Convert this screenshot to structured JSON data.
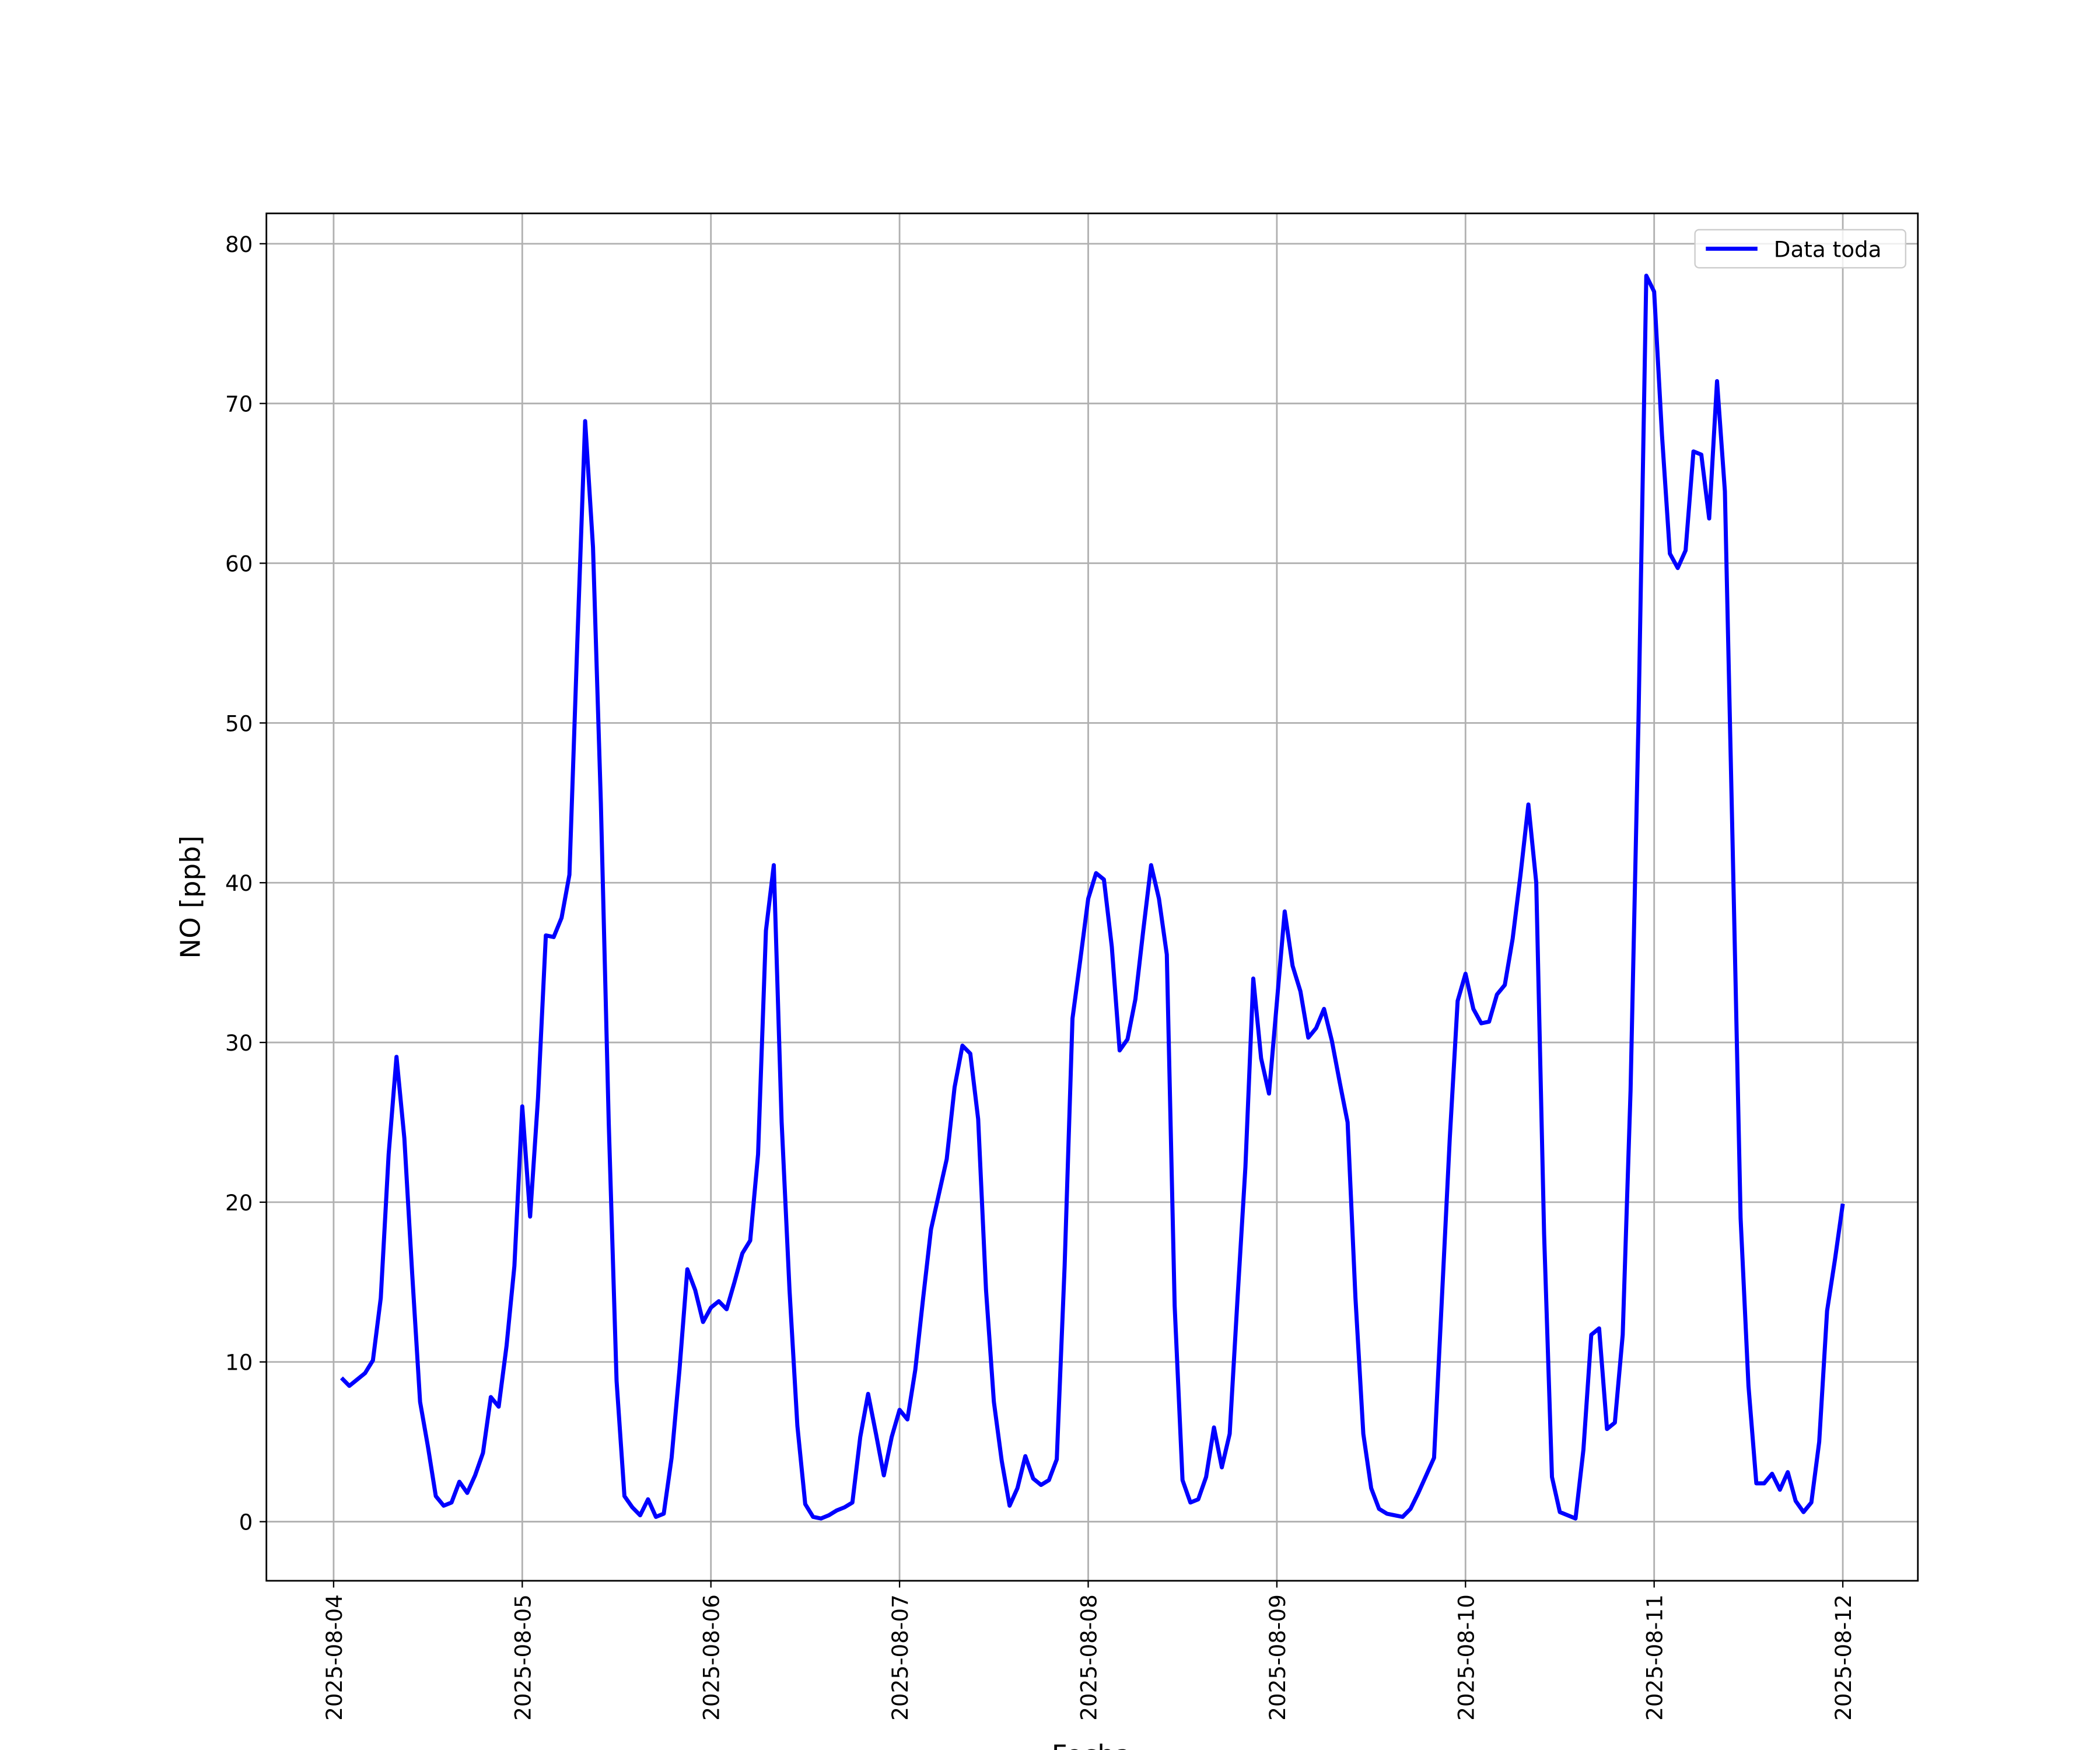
{
  "chart_data": {
    "type": "line",
    "x_label": "Fecha",
    "y_label": "NO [ppb]",
    "x": [
      "2025-08-04 01:00",
      "2025-08-04 02:00",
      "2025-08-04 03:00",
      "2025-08-04 04:00",
      "2025-08-04 05:00",
      "2025-08-04 06:00",
      "2025-08-04 07:00",
      "2025-08-04 08:00",
      "2025-08-04 09:00",
      "2025-08-04 10:00",
      "2025-08-04 11:00",
      "2025-08-04 12:00",
      "2025-08-04 13:00",
      "2025-08-04 14:00",
      "2025-08-04 15:00",
      "2025-08-04 16:00",
      "2025-08-04 17:00",
      "2025-08-04 18:00",
      "2025-08-04 19:00",
      "2025-08-04 20:00",
      "2025-08-04 21:00",
      "2025-08-04 22:00",
      "2025-08-04 23:00",
      "2025-08-05 00:00",
      "2025-08-05 01:00",
      "2025-08-05 02:00",
      "2025-08-05 03:00",
      "2025-08-05 04:00",
      "2025-08-05 05:00",
      "2025-08-05 06:00",
      "2025-08-05 07:00",
      "2025-08-05 08:00",
      "2025-08-05 09:00",
      "2025-08-05 10:00",
      "2025-08-05 11:00",
      "2025-08-05 12:00",
      "2025-08-05 13:00",
      "2025-08-05 14:00",
      "2025-08-05 15:00",
      "2025-08-05 16:00",
      "2025-08-05 17:00",
      "2025-08-05 18:00",
      "2025-08-05 19:00",
      "2025-08-05 20:00",
      "2025-08-05 21:00",
      "2025-08-05 22:00",
      "2025-08-05 23:00",
      "2025-08-06 00:00",
      "2025-08-06 01:00",
      "2025-08-06 02:00",
      "2025-08-06 03:00",
      "2025-08-06 04:00",
      "2025-08-06 05:00",
      "2025-08-06 06:00",
      "2025-08-06 07:00",
      "2025-08-06 08:00",
      "2025-08-06 09:00",
      "2025-08-06 10:00",
      "2025-08-06 11:00",
      "2025-08-06 12:00",
      "2025-08-06 13:00",
      "2025-08-06 14:00",
      "2025-08-06 15:00",
      "2025-08-06 16:00",
      "2025-08-06 17:00",
      "2025-08-06 18:00",
      "2025-08-06 19:00",
      "2025-08-06 20:00",
      "2025-08-06 21:00",
      "2025-08-06 22:00",
      "2025-08-06 23:00",
      "2025-08-07 00:00",
      "2025-08-07 01:00",
      "2025-08-07 02:00",
      "2025-08-07 03:00",
      "2025-08-07 04:00",
      "2025-08-07 05:00",
      "2025-08-07 06:00",
      "2025-08-07 07:00",
      "2025-08-07 08:00",
      "2025-08-07 09:00",
      "2025-08-07 10:00",
      "2025-08-07 11:00",
      "2025-08-07 12:00",
      "2025-08-07 13:00",
      "2025-08-07 14:00",
      "2025-08-07 15:00",
      "2025-08-07 16:00",
      "2025-08-07 17:00",
      "2025-08-07 18:00",
      "2025-08-07 19:00",
      "2025-08-07 20:00",
      "2025-08-07 21:00",
      "2025-08-07 22:00",
      "2025-08-07 23:00",
      "2025-08-08 00:00",
      "2025-08-08 01:00",
      "2025-08-08 02:00",
      "2025-08-08 03:00",
      "2025-08-08 04:00",
      "2025-08-08 05:00",
      "2025-08-08 06:00",
      "2025-08-08 07:00",
      "2025-08-08 08:00",
      "2025-08-08 09:00",
      "2025-08-08 10:00",
      "2025-08-08 11:00",
      "2025-08-08 12:00",
      "2025-08-08 13:00",
      "2025-08-08 14:00",
      "2025-08-08 15:00",
      "2025-08-08 16:00",
      "2025-08-08 17:00",
      "2025-08-08 18:00",
      "2025-08-08 19:00",
      "2025-08-08 20:00",
      "2025-08-08 21:00",
      "2025-08-08 22:00",
      "2025-08-08 23:00",
      "2025-08-09 00:00",
      "2025-08-09 01:00",
      "2025-08-09 02:00",
      "2025-08-09 03:00",
      "2025-08-09 04:00",
      "2025-08-09 05:00",
      "2025-08-09 06:00",
      "2025-08-09 07:00",
      "2025-08-09 08:00",
      "2025-08-09 09:00",
      "2025-08-09 10:00",
      "2025-08-09 11:00",
      "2025-08-09 12:00",
      "2025-08-09 13:00",
      "2025-08-09 14:00",
      "2025-08-09 15:00",
      "2025-08-09 16:00",
      "2025-08-09 17:00",
      "2025-08-09 18:00",
      "2025-08-09 19:00",
      "2025-08-09 20:00",
      "2025-08-09 21:00",
      "2025-08-09 22:00",
      "2025-08-09 23:00",
      "2025-08-10 00:00",
      "2025-08-10 01:00",
      "2025-08-10 02:00",
      "2025-08-10 03:00",
      "2025-08-10 04:00",
      "2025-08-10 05:00",
      "2025-08-10 06:00",
      "2025-08-10 07:00",
      "2025-08-10 08:00",
      "2025-08-10 09:00",
      "2025-08-10 10:00",
      "2025-08-10 11:00",
      "2025-08-10 12:00",
      "2025-08-10 13:00",
      "2025-08-10 14:00",
      "2025-08-10 15:00",
      "2025-08-10 16:00",
      "2025-08-10 17:00",
      "2025-08-10 18:00",
      "2025-08-10 19:00",
      "2025-08-10 20:00",
      "2025-08-10 21:00",
      "2025-08-10 22:00",
      "2025-08-10 23:00",
      "2025-08-11 00:00",
      "2025-08-11 01:00",
      "2025-08-11 02:00",
      "2025-08-11 03:00",
      "2025-08-11 04:00",
      "2025-08-11 05:00",
      "2025-08-11 06:00",
      "2025-08-11 07:00",
      "2025-08-11 08:00",
      "2025-08-11 09:00",
      "2025-08-11 10:00",
      "2025-08-11 11:00",
      "2025-08-11 12:00",
      "2025-08-11 13:00",
      "2025-08-11 14:00",
      "2025-08-11 15:00",
      "2025-08-11 16:00",
      "2025-08-11 17:00",
      "2025-08-11 18:00",
      "2025-08-11 19:00",
      "2025-08-11 20:00",
      "2025-08-11 21:00",
      "2025-08-11 22:00",
      "2025-08-11 23:00",
      "2025-08-12 00:00"
    ],
    "series": [
      {
        "name": "Data toda",
        "color": "#0000ff",
        "values": [
          9,
          8.5,
          8.9,
          9.3,
          10.1,
          14,
          23,
          29.1,
          24,
          15.5,
          7.5,
          4.7,
          1.6,
          1,
          1.2,
          2.5,
          1.8,
          2.9,
          4.3,
          7.8,
          7.2,
          11,
          16,
          26,
          19.1,
          26.5,
          36.7,
          36.6,
          37.8,
          40.5,
          55,
          68.9,
          61,
          45,
          25,
          8.8,
          1.6,
          0.9,
          0.4,
          1.4,
          0.3,
          0.5,
          4,
          9.5,
          15.8,
          14.5,
          12.5,
          13.4,
          13.8,
          13.3,
          15,
          16.8,
          17.6,
          23,
          37,
          41.1,
          25,
          14.5,
          6,
          1.1,
          0.3,
          0.2,
          0.4,
          0.7,
          0.9,
          1.2,
          5.3,
          8,
          5.5,
          2.9,
          5.3,
          7,
          6.4,
          9.5,
          14,
          18.3,
          20.5,
          22.7,
          27.2,
          29.8,
          29.3,
          25.2,
          14.5,
          7.5,
          3.8,
          1,
          2.1,
          4.1,
          2.7,
          2.3,
          2.6,
          3.9,
          16,
          31.5,
          35.2,
          39,
          40.6,
          40.2,
          36,
          29.5,
          30.2,
          32.7,
          37,
          41.1,
          39,
          35.5,
          13.5,
          2.6,
          1.2,
          1.4,
          2.8,
          5.9,
          3.4,
          5.5,
          14,
          22.2,
          34,
          29,
          26.8,
          32.5,
          38.2,
          34.8,
          33.2,
          30.3,
          30.9,
          32.1,
          30.1,
          27.5,
          25,
          14,
          5.5,
          2.1,
          0.8,
          0.5,
          0.4,
          0.3,
          0.8,
          1.8,
          2.9,
          4,
          14,
          24,
          32.6,
          34.3,
          32.1,
          31.2,
          31.3,
          33,
          33.6,
          36.5,
          40.5,
          44.9,
          40,
          18,
          2.8,
          0.6,
          0.4,
          0.2,
          4.5,
          11.7,
          12.1,
          5.8,
          6.2,
          11.7,
          27,
          50,
          78,
          77,
          68,
          60.6,
          59.7,
          60.8,
          67,
          66.8,
          62.8,
          71.4,
          64.5,
          42,
          19,
          8.5,
          2.4,
          2.4,
          3,
          2,
          3.1,
          1.3,
          0.6,
          1.2,
          5,
          13.2,
          16.4,
          19.9
        ]
      }
    ],
    "xlim": [
      "2025-08-03 15:27",
      "2025-08-12 09:33"
    ],
    "xticks": [
      "2025-08-04",
      "2025-08-05",
      "2025-08-06",
      "2025-08-07",
      "2025-08-08",
      "2025-08-09",
      "2025-08-10",
      "2025-08-11",
      "2025-08-12"
    ],
    "ylim": [
      -3.7,
      81.9
    ],
    "yticks": [
      0,
      10,
      20,
      30,
      40,
      50,
      60,
      70,
      80
    ],
    "grid": true,
    "legend": "upper right"
  }
}
